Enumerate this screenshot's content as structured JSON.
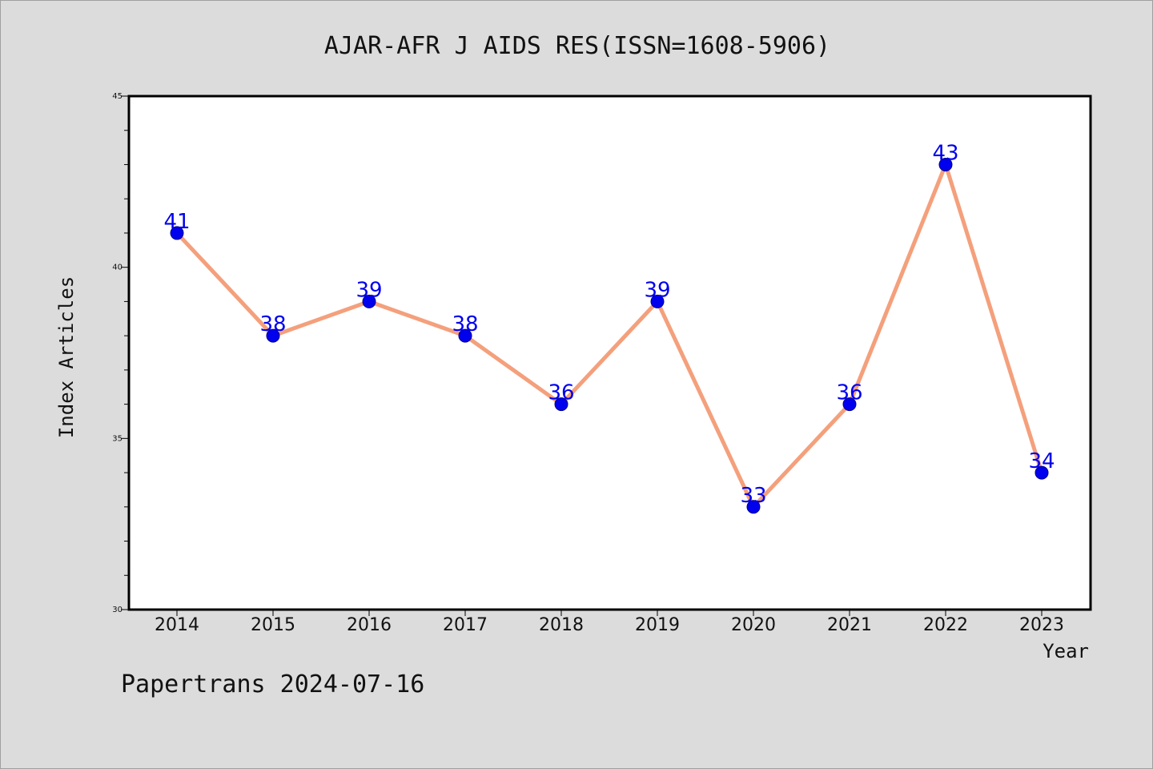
{
  "chart_data": {
    "type": "line",
    "title": "AJAR-AFR J AIDS RES(ISSN=1608-5906)",
    "xlabel": "Year",
    "ylabel": "Index Articles",
    "categories": [
      "2014",
      "2015",
      "2016",
      "2017",
      "2018",
      "2019",
      "2020",
      "2021",
      "2022",
      "2023"
    ],
    "values": [
      41,
      38,
      39,
      38,
      36,
      39,
      33,
      36,
      43,
      34
    ],
    "ylim": [
      30,
      45
    ],
    "yticks": [
      "30",
      "35",
      "40",
      "45"
    ],
    "line_color": "#f4a07c",
    "marker_color": "#0000ee",
    "label_color": "#0000ee",
    "grid": false,
    "legend": "none"
  },
  "footer": "Papertrans 2024-07-16"
}
